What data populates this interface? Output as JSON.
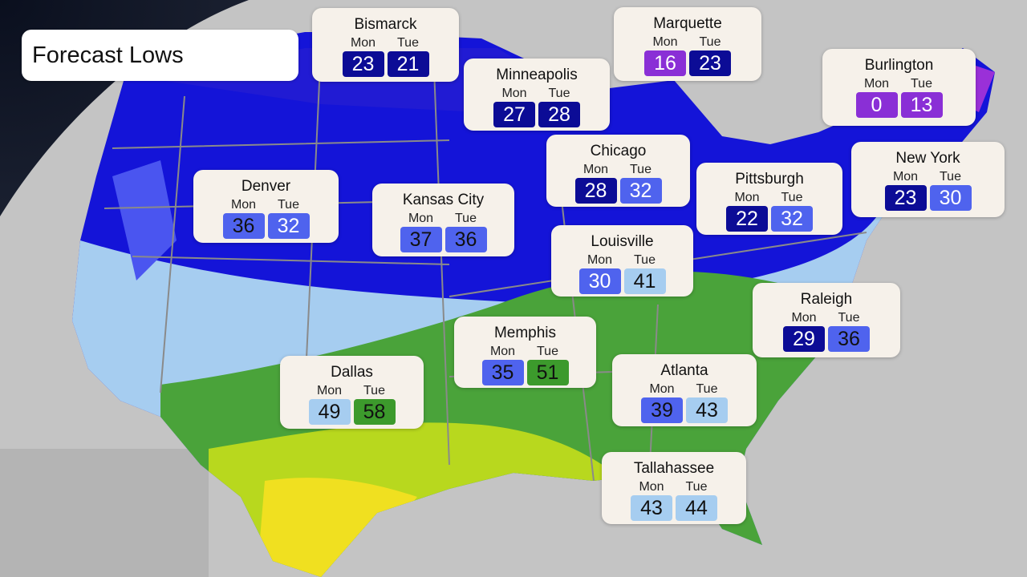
{
  "title": "Forecast Lows",
  "day_labels": [
    "Mon",
    "Tue"
  ],
  "color_scale": [
    {
      "max": 19,
      "bg": "#8a2fd6",
      "fg": "#ffffff"
    },
    {
      "max": 29,
      "bg": "#0c0c96",
      "fg": "#ffffff"
    },
    {
      "max": 32,
      "bg": "#4f63ee",
      "fg": "#ffffff"
    },
    {
      "max": 39,
      "bg": "#4f63ee",
      "fg": "#111111"
    },
    {
      "max": 49,
      "bg": "#a6cdf0",
      "fg": "#111111"
    },
    {
      "max": 99,
      "bg": "#3c9a2c",
      "fg": "#111111"
    }
  ],
  "cities": [
    {
      "name": "Bismarck",
      "mon": 23,
      "tue": 21
    },
    {
      "name": "Minneapolis",
      "mon": 27,
      "tue": 28
    },
    {
      "name": "Marquette",
      "mon": 16,
      "tue": 23
    },
    {
      "name": "Burlington",
      "mon": 0,
      "tue": 13
    },
    {
      "name": "Chicago",
      "mon": 28,
      "tue": 32
    },
    {
      "name": "Pittsburgh",
      "mon": 22,
      "tue": 32
    },
    {
      "name": "New York",
      "mon": 23,
      "tue": 30
    },
    {
      "name": "Denver",
      "mon": 36,
      "tue": 32
    },
    {
      "name": "Kansas City",
      "mon": 37,
      "tue": 36
    },
    {
      "name": "Louisville",
      "mon": 30,
      "tue": 41
    },
    {
      "name": "Raleigh",
      "mon": 29,
      "tue": 36
    },
    {
      "name": "Memphis",
      "mon": 35,
      "tue": 51
    },
    {
      "name": "Dallas",
      "mon": 49,
      "tue": 58
    },
    {
      "name": "Atlanta",
      "mon": 39,
      "tue": 43
    },
    {
      "name": "Tallahassee",
      "mon": 43,
      "tue": 44
    }
  ]
}
